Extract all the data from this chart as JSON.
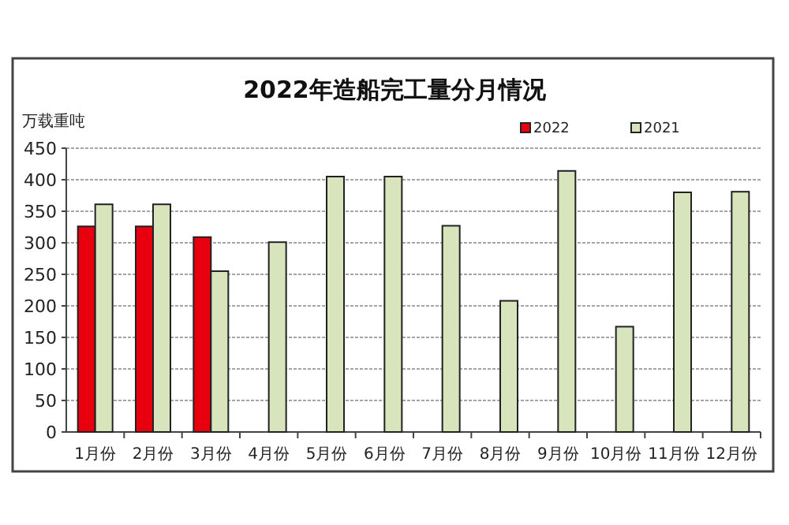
{
  "chart_data": {
    "type": "bar",
    "title": "2022年造船完工量分月情况",
    "ylabel": "万载重吨",
    "categories": [
      "1月份",
      "2月份",
      "3月份",
      "4月份",
      "5月份",
      "6月份",
      "7月份",
      "8月份",
      "9月份",
      "10月份",
      "11月份",
      "12月份"
    ],
    "series": [
      {
        "name": "2022",
        "color": "#e8000f",
        "values": [
          326,
          326,
          309,
          null,
          null,
          null,
          null,
          null,
          null,
          null,
          null,
          null
        ]
      },
      {
        "name": "2021",
        "color": "#d8e4bc",
        "values": [
          361,
          361,
          255,
          301,
          405,
          405,
          327,
          208,
          414,
          167,
          380,
          381
        ]
      }
    ],
    "ylim": [
      0,
      450
    ],
    "yticks": [
      0,
      50,
      100,
      150,
      200,
      250,
      300,
      350,
      400,
      450
    ],
    "grid": "y",
    "legend": "top right"
  }
}
